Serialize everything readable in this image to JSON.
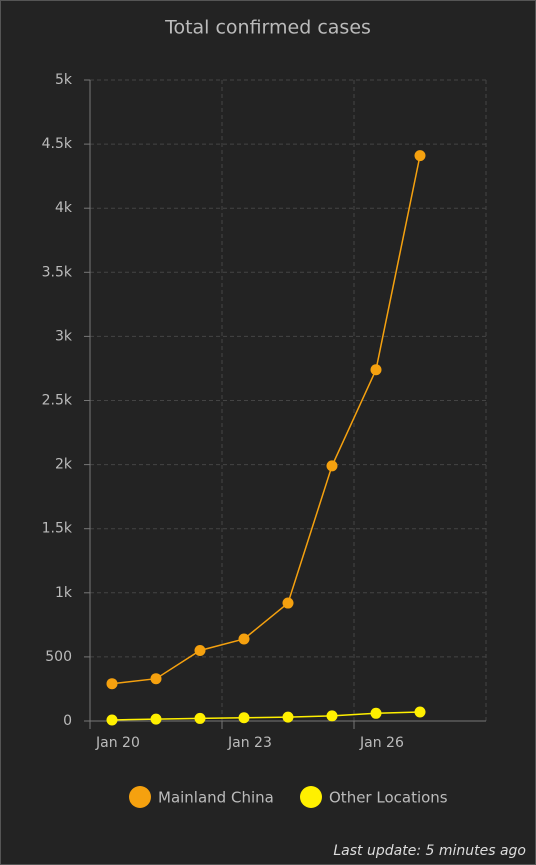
{
  "chart_data": {
    "type": "line",
    "title": "Total confirmed cases",
    "categories": [
      "Jan 20",
      null,
      null,
      "Jan 23",
      null,
      null,
      "Jan 26",
      null,
      null
    ],
    "series": [
      {
        "name": "Mainland China",
        "color": "#f5a10f",
        "values": [
          291,
          330,
          550,
          640,
          920,
          1990,
          2740,
          4410,
          null
        ]
      },
      {
        "name": "Other Locations",
        "color": "#fff000",
        "values": [
          8,
          15,
          20,
          25,
          30,
          40,
          60,
          70,
          null
        ]
      }
    ],
    "ylim": [
      0,
      5000
    ],
    "yticks": [
      0,
      500,
      {
        "value": 1000,
        "label": "1k"
      },
      {
        "value": 1500,
        "label": "1.5k"
      },
      {
        "value": 2000,
        "label": "2k"
      },
      {
        "value": 2500,
        "label": "2.5k"
      },
      {
        "value": 3000,
        "label": "3k"
      },
      {
        "value": 3500,
        "label": "3.5k"
      },
      {
        "value": 4000,
        "label": "4k"
      },
      {
        "value": 4500,
        "label": "4.5k"
      },
      {
        "value": 5000,
        "label": "5k"
      }
    ],
    "grid": true,
    "footer": "Last update: 5 minutes ago"
  }
}
